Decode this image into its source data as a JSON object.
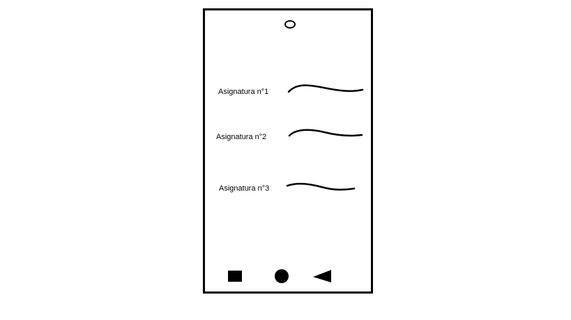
{
  "subjects": [
    {
      "label": "Asignatura n°1"
    },
    {
      "label": "Asignatura n°2"
    },
    {
      "label": "Asignatura n°3"
    }
  ],
  "navbar": {
    "recent_icon": "square-icon",
    "home_icon": "circle-icon",
    "back_icon": "triangle-back-icon"
  }
}
